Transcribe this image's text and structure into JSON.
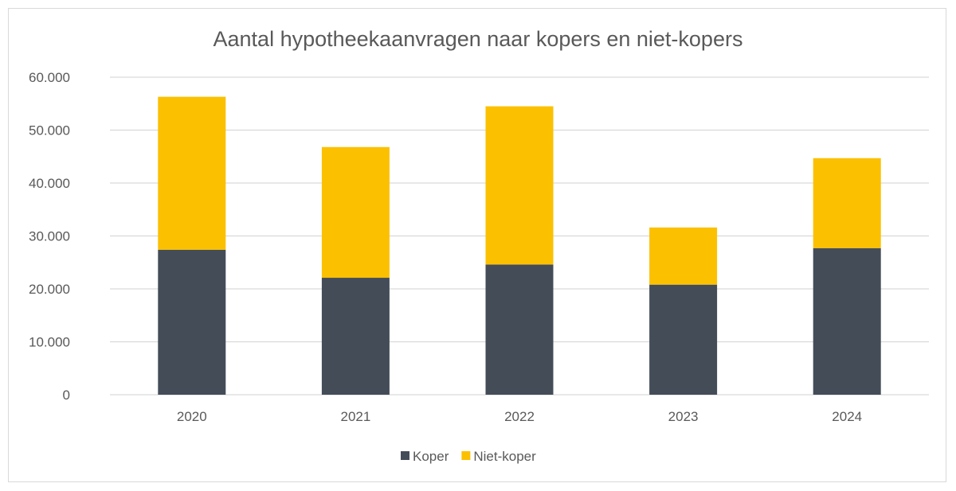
{
  "chart_data": {
    "type": "bar",
    "stacked": true,
    "title": "Aantal hypotheekaanvragen naar kopers en niet-kopers",
    "xlabel": "",
    "ylabel": "",
    "categories": [
      "2020",
      "2021",
      "2022",
      "2023",
      "2024"
    ],
    "series": [
      {
        "name": "Koper",
        "color": "#444c58",
        "values": [
          27400,
          22100,
          24600,
          20800,
          27700
        ]
      },
      {
        "name": "Niet-koper",
        "color": "#fbc000",
        "values": [
          28900,
          24700,
          29900,
          10800,
          17000
        ]
      }
    ],
    "ylim": [
      0,
      60000
    ],
    "yticks": [
      0,
      10000,
      20000,
      30000,
      40000,
      50000,
      60000
    ],
    "ytick_labels": [
      "0",
      "10.000",
      "20.000",
      "30.000",
      "40.000",
      "50.000",
      "60.000"
    ],
    "grid": true,
    "legend_position": "bottom"
  }
}
